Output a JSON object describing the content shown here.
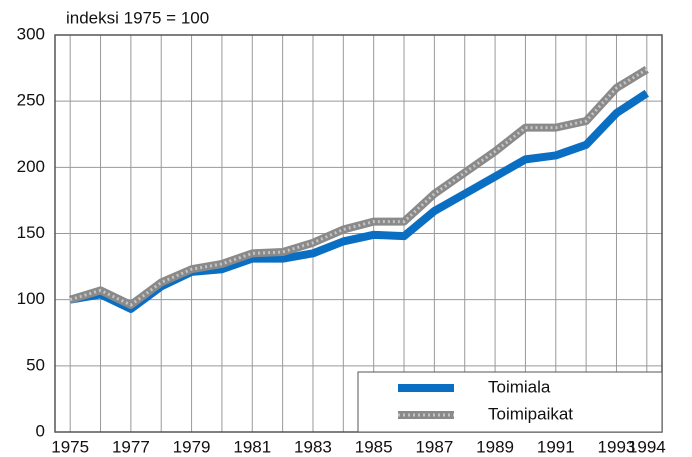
{
  "chart_data": {
    "type": "line",
    "y_label": "indeksi 1975 = 100",
    "x": [
      1975,
      1976,
      1977,
      1978,
      1979,
      1980,
      1981,
      1982,
      1983,
      1984,
      1985,
      1986,
      1987,
      1988,
      1989,
      1990,
      1991,
      1992,
      1993,
      1994
    ],
    "series": [
      {
        "name": "Toimiala",
        "color": "#0a6fc2",
        "values": [
          100,
          104,
          93,
          110,
          121,
          123,
          131,
          131,
          135,
          144,
          149,
          148,
          167,
          180,
          193,
          206,
          209,
          217,
          241,
          256
        ]
      },
      {
        "name": "Toimipaikat",
        "color": "#8a8a8a",
        "values": [
          100,
          107,
          96,
          113,
          123,
          127,
          135,
          136,
          143,
          153,
          159,
          159,
          180,
          196,
          212,
          230,
          230,
          235,
          260,
          274
        ]
      }
    ],
    "xlim": [
      1974.5,
      1994.5
    ],
    "ylim": [
      0,
      300
    ],
    "xticks": [
      1975,
      1977,
      1979,
      1981,
      1983,
      1985,
      1987,
      1989,
      1991,
      1993,
      1994
    ],
    "yticks": [
      0,
      50,
      100,
      150,
      200,
      250,
      300
    ],
    "grid": true,
    "legend": "lower right"
  }
}
